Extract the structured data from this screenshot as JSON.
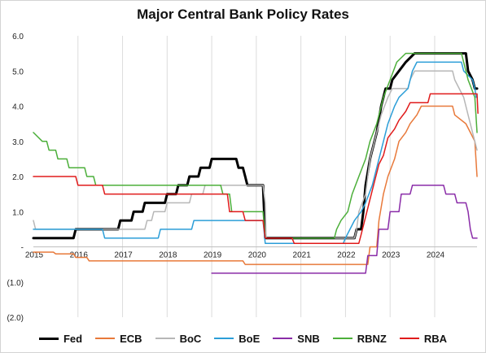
{
  "chart_data": {
    "type": "line",
    "title": "Major Central Bank Policy Rates",
    "xlabel": "",
    "ylabel": "",
    "xlim": [
      2015.0,
      2024.95
    ],
    "ylim": [
      -2.0,
      6.0
    ],
    "x_ticks": [
      2015,
      2016,
      2017,
      2018,
      2019,
      2020,
      2021,
      2022,
      2023,
      2024
    ],
    "x_tick_labels": [
      "2015",
      "2016",
      "2017",
      "2018",
      "2019",
      "2020",
      "2021",
      "2022",
      "2023",
      "2024"
    ],
    "y_ticks": [
      6,
      5,
      4,
      3,
      2,
      1,
      0,
      -1,
      -2
    ],
    "y_tick_labels": [
      "6.0",
      "5.0",
      "4.0",
      "3.0",
      "2.0",
      "1.0",
      "-",
      "(1.0)",
      "(2.0)"
    ],
    "grid": "vertical",
    "legend_position": "bottom",
    "series": [
      {
        "name": "Fed",
        "color": "#000000",
        "width": 3,
        "points": [
          [
            2015.0,
            0.25
          ],
          [
            2015.9,
            0.25
          ],
          [
            2015.95,
            0.5
          ],
          [
            2016.9,
            0.5
          ],
          [
            2016.95,
            0.75
          ],
          [
            2017.2,
            0.75
          ],
          [
            2017.25,
            1.0
          ],
          [
            2017.45,
            1.0
          ],
          [
            2017.5,
            1.25
          ],
          [
            2017.95,
            1.25
          ],
          [
            2018.0,
            1.5
          ],
          [
            2018.2,
            1.5
          ],
          [
            2018.25,
            1.75
          ],
          [
            2018.45,
            1.75
          ],
          [
            2018.5,
            2.0
          ],
          [
            2018.7,
            2.0
          ],
          [
            2018.75,
            2.25
          ],
          [
            2018.95,
            2.25
          ],
          [
            2019.0,
            2.5
          ],
          [
            2019.55,
            2.5
          ],
          [
            2019.6,
            2.25
          ],
          [
            2019.7,
            2.25
          ],
          [
            2019.75,
            2.0
          ],
          [
            2019.8,
            1.75
          ],
          [
            2020.15,
            1.75
          ],
          [
            2020.2,
            0.25
          ],
          [
            2022.2,
            0.25
          ],
          [
            2022.25,
            0.5
          ],
          [
            2022.35,
            0.5
          ],
          [
            2022.4,
            1.0
          ],
          [
            2022.45,
            1.75
          ],
          [
            2022.55,
            2.5
          ],
          [
            2022.7,
            3.25
          ],
          [
            2022.8,
            4.0
          ],
          [
            2022.9,
            4.5
          ],
          [
            2023.0,
            4.5
          ],
          [
            2023.05,
            4.75
          ],
          [
            2023.2,
            5.0
          ],
          [
            2023.35,
            5.25
          ],
          [
            2023.55,
            5.5
          ],
          [
            2024.7,
            5.5
          ],
          [
            2024.75,
            5.0
          ],
          [
            2024.85,
            4.75
          ],
          [
            2024.9,
            4.5
          ],
          [
            2024.95,
            4.5
          ]
        ]
      },
      {
        "name": "ECB",
        "color": "#e8793a",
        "width": 1.5,
        "points": [
          [
            2015.0,
            -0.15
          ],
          [
            2015.45,
            -0.15
          ],
          [
            2015.5,
            -0.2
          ],
          [
            2015.9,
            -0.2
          ],
          [
            2015.95,
            -0.3
          ],
          [
            2016.2,
            -0.3
          ],
          [
            2016.25,
            -0.4
          ],
          [
            2019.7,
            -0.4
          ],
          [
            2019.75,
            -0.5
          ],
          [
            2022.5,
            -0.5
          ],
          [
            2022.55,
            0.0
          ],
          [
            2022.7,
            0.0
          ],
          [
            2022.75,
            0.75
          ],
          [
            2022.85,
            1.5
          ],
          [
            2022.95,
            2.0
          ],
          [
            2023.1,
            2.5
          ],
          [
            2023.2,
            3.0
          ],
          [
            2023.35,
            3.25
          ],
          [
            2023.45,
            3.5
          ],
          [
            2023.6,
            3.75
          ],
          [
            2023.7,
            4.0
          ],
          [
            2024.4,
            4.0
          ],
          [
            2024.45,
            3.75
          ],
          [
            2024.7,
            3.5
          ],
          [
            2024.8,
            3.25
          ],
          [
            2024.9,
            3.0
          ],
          [
            2024.95,
            2.0
          ]
        ]
      },
      {
        "name": "BoC",
        "color": "#b7b7b7",
        "width": 1.5,
        "points": [
          [
            2015.0,
            0.75
          ],
          [
            2015.05,
            0.5
          ],
          [
            2015.5,
            0.5
          ],
          [
            2015.55,
            0.5
          ],
          [
            2017.5,
            0.5
          ],
          [
            2017.55,
            0.75
          ],
          [
            2017.65,
            0.75
          ],
          [
            2017.7,
            1.0
          ],
          [
            2017.95,
            1.0
          ],
          [
            2018.0,
            1.25
          ],
          [
            2018.5,
            1.25
          ],
          [
            2018.55,
            1.5
          ],
          [
            2018.8,
            1.5
          ],
          [
            2018.85,
            1.75
          ],
          [
            2020.15,
            1.75
          ],
          [
            2020.2,
            1.25
          ],
          [
            2020.22,
            0.25
          ],
          [
            2022.2,
            0.25
          ],
          [
            2022.25,
            0.5
          ],
          [
            2022.3,
            1.0
          ],
          [
            2022.45,
            1.5
          ],
          [
            2022.55,
            2.5
          ],
          [
            2022.7,
            3.25
          ],
          [
            2022.8,
            3.75
          ],
          [
            2022.95,
            4.25
          ],
          [
            2023.05,
            4.5
          ],
          [
            2023.4,
            4.5
          ],
          [
            2023.45,
            4.75
          ],
          [
            2023.55,
            5.0
          ],
          [
            2024.4,
            5.0
          ],
          [
            2024.45,
            4.75
          ],
          [
            2024.55,
            4.5
          ],
          [
            2024.65,
            4.25
          ],
          [
            2024.75,
            3.75
          ],
          [
            2024.85,
            3.25
          ],
          [
            2024.95,
            2.75
          ]
        ]
      },
      {
        "name": "BoE",
        "color": "#2b9ed8",
        "width": 1.5,
        "points": [
          [
            2015.0,
            0.5
          ],
          [
            2016.55,
            0.5
          ],
          [
            2016.6,
            0.25
          ],
          [
            2017.8,
            0.25
          ],
          [
            2017.85,
            0.5
          ],
          [
            2018.55,
            0.5
          ],
          [
            2018.6,
            0.75
          ],
          [
            2020.15,
            0.75
          ],
          [
            2020.2,
            0.1
          ],
          [
            2021.95,
            0.1
          ],
          [
            2022.0,
            0.25
          ],
          [
            2022.1,
            0.5
          ],
          [
            2022.2,
            0.75
          ],
          [
            2022.35,
            1.0
          ],
          [
            2022.45,
            1.25
          ],
          [
            2022.6,
            1.75
          ],
          [
            2022.7,
            2.25
          ],
          [
            2022.85,
            3.0
          ],
          [
            2022.95,
            3.5
          ],
          [
            2023.1,
            4.0
          ],
          [
            2023.2,
            4.25
          ],
          [
            2023.4,
            4.5
          ],
          [
            2023.5,
            5.0
          ],
          [
            2023.6,
            5.25
          ],
          [
            2024.6,
            5.25
          ],
          [
            2024.65,
            5.0
          ],
          [
            2024.85,
            4.75
          ],
          [
            2024.9,
            4.5
          ],
          [
            2024.93,
            4.25
          ]
        ]
      },
      {
        "name": "SNB",
        "color": "#8a2ca8",
        "width": 1.5,
        "points": [
          [
            2019.0,
            -0.75
          ],
          [
            2022.45,
            -0.75
          ],
          [
            2022.5,
            -0.25
          ],
          [
            2022.7,
            -0.25
          ],
          [
            2022.75,
            0.5
          ],
          [
            2022.95,
            0.5
          ],
          [
            2023.0,
            1.0
          ],
          [
            2023.2,
            1.0
          ],
          [
            2023.25,
            1.5
          ],
          [
            2023.45,
            1.5
          ],
          [
            2023.5,
            1.75
          ],
          [
            2024.2,
            1.75
          ],
          [
            2024.25,
            1.5
          ],
          [
            2024.45,
            1.5
          ],
          [
            2024.5,
            1.25
          ],
          [
            2024.7,
            1.25
          ],
          [
            2024.75,
            1.0
          ],
          [
            2024.8,
            0.5
          ],
          [
            2024.85,
            0.25
          ],
          [
            2024.95,
            0.25
          ]
        ]
      },
      {
        "name": "RBNZ",
        "color": "#4caf3a",
        "width": 1.5,
        "points": [
          [
            2015.0,
            3.25
          ],
          [
            2015.2,
            3.0
          ],
          [
            2015.3,
            3.0
          ],
          [
            2015.35,
            2.75
          ],
          [
            2015.5,
            2.75
          ],
          [
            2015.55,
            2.5
          ],
          [
            2015.75,
            2.5
          ],
          [
            2015.8,
            2.25
          ],
          [
            2016.15,
            2.25
          ],
          [
            2016.2,
            2.0
          ],
          [
            2016.35,
            2.0
          ],
          [
            2016.4,
            1.75
          ],
          [
            2019.2,
            1.75
          ],
          [
            2019.25,
            1.5
          ],
          [
            2019.4,
            1.5
          ],
          [
            2019.45,
            1.0
          ],
          [
            2020.15,
            1.0
          ],
          [
            2020.2,
            0.25
          ],
          [
            2021.75,
            0.25
          ],
          [
            2021.8,
            0.5
          ],
          [
            2021.9,
            0.75
          ],
          [
            2022.05,
            1.0
          ],
          [
            2022.15,
            1.5
          ],
          [
            2022.3,
            2.0
          ],
          [
            2022.45,
            2.5
          ],
          [
            2022.55,
            3.0
          ],
          [
            2022.7,
            3.5
          ],
          [
            2022.85,
            4.25
          ],
          [
            2023.0,
            4.75
          ],
          [
            2023.15,
            5.25
          ],
          [
            2023.35,
            5.5
          ],
          [
            2024.6,
            5.5
          ],
          [
            2024.65,
            5.25
          ],
          [
            2024.75,
            4.75
          ],
          [
            2024.9,
            4.25
          ],
          [
            2024.95,
            3.25
          ]
        ]
      },
      {
        "name": "RBA",
        "color": "#e01b1b",
        "width": 1.5,
        "points": [
          [
            2015.0,
            2.0
          ],
          [
            2015.95,
            2.0
          ],
          [
            2016.0,
            1.75
          ],
          [
            2016.55,
            1.75
          ],
          [
            2016.6,
            1.5
          ],
          [
            2019.35,
            1.5
          ],
          [
            2019.4,
            1.0
          ],
          [
            2019.7,
            1.0
          ],
          [
            2019.75,
            0.75
          ],
          [
            2020.15,
            0.75
          ],
          [
            2020.2,
            0.25
          ],
          [
            2020.8,
            0.25
          ],
          [
            2020.85,
            0.1
          ],
          [
            2022.3,
            0.1
          ],
          [
            2022.35,
            0.35
          ],
          [
            2022.45,
            0.85
          ],
          [
            2022.55,
            1.35
          ],
          [
            2022.65,
            1.85
          ],
          [
            2022.75,
            2.35
          ],
          [
            2022.85,
            2.6
          ],
          [
            2022.95,
            3.1
          ],
          [
            2023.1,
            3.35
          ],
          [
            2023.2,
            3.6
          ],
          [
            2023.35,
            3.85
          ],
          [
            2023.45,
            4.1
          ],
          [
            2023.85,
            4.1
          ],
          [
            2023.9,
            4.35
          ],
          [
            2024.95,
            4.35
          ],
          [
            2024.97,
            3.8
          ]
        ]
      }
    ]
  }
}
